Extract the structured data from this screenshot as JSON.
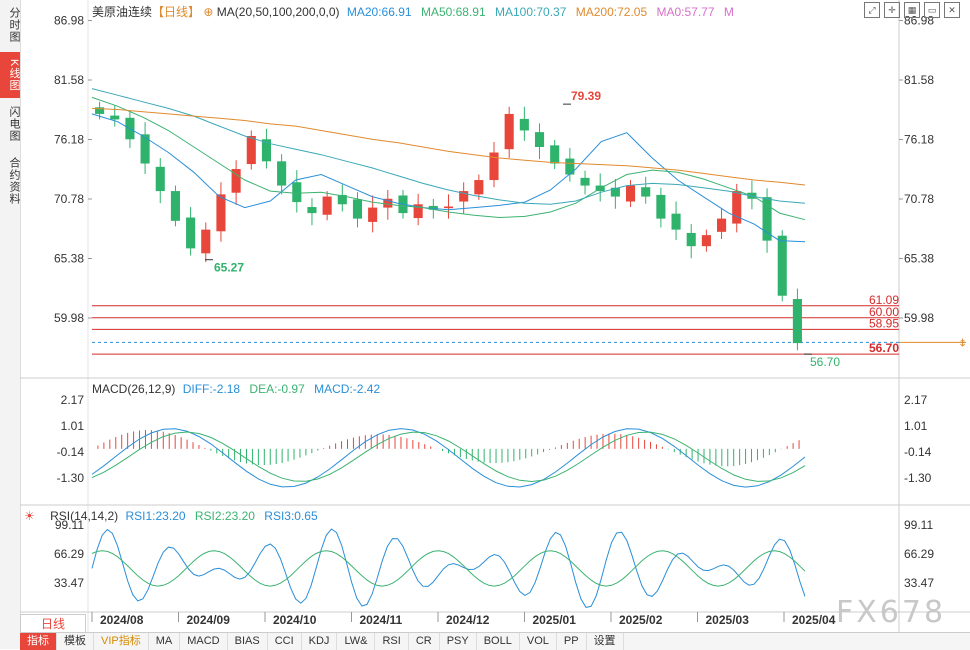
{
  "left_tabs": [
    {
      "label": "分时图",
      "active": false
    },
    {
      "label": "K线图",
      "active": true
    },
    {
      "label": "闪电图",
      "active": false
    },
    {
      "label": "合约资料",
      "active": false
    }
  ],
  "header": {
    "instrument": "美原油连续",
    "period_tag": "【日线】",
    "ma_label": "MA(20,50,100,200,0,0)",
    "ma20": "MA20:66.91",
    "ma50": "MA50:68.91",
    "ma100": "MA100:70.37",
    "ma200": "MA200:72.05",
    "ma0": "MA0:57.77",
    "m": "M"
  },
  "toolbar": {
    "icons": [
      "fullscreen-icon",
      "crosshair-icon",
      "grid-icon",
      "window-icon",
      "close-icon"
    ]
  },
  "colors": {
    "up": "#e8463b",
    "down": "#2fb36c",
    "ma20": "#2a8fd8",
    "ma50": "#3cb371",
    "ma100": "#3aa8b8",
    "ma200": "#e08a2e",
    "hline": "#d42a2a",
    "dash": "#2a8fd8"
  },
  "price_axis": [
    "86.98",
    "81.58",
    "76.18",
    "70.78",
    "65.38",
    "59.98"
  ],
  "annotations": {
    "high": "79.39",
    "low": "65.27",
    "last_low": "56.70"
  },
  "levels": [
    "61.09",
    "60.00",
    "58.95",
    "56.70"
  ],
  "macd": {
    "label": "MACD(26,12,9)",
    "diff": "DIFF:-2.18",
    "dea": "DEA:-0.97",
    "macd": "MACD:-2.42",
    "axis": [
      "2.17",
      "1.01",
      "-0.14",
      "-1.30"
    ]
  },
  "rsi": {
    "label": "RSI(14,14,2)",
    "rsi1": "RSI1:23.20",
    "rsi2": "RSI2:23.20",
    "rsi3": "RSI3:0.65",
    "axis": [
      "99.11",
      "66.29",
      "33.47"
    ]
  },
  "x_axis": [
    "2024/08",
    "2024/09",
    "2024/10",
    "2024/11",
    "2024/12",
    "2025/01",
    "2025/02",
    "2025/03",
    "2025/04"
  ],
  "period_tab": "日线",
  "bottom_tabs": [
    "指标",
    "模板",
    "VIP指标",
    "MA",
    "MACD",
    "BIAS",
    "CCI",
    "KDJ",
    "LW&",
    "RSI",
    "CR",
    "PSY",
    "BOLL",
    "VOL",
    "PP",
    "设置"
  ],
  "watermark": "FX678",
  "chart_data": {
    "type": "candlestick",
    "title": "美原油连续【日线】",
    "price_ylim": [
      56.0,
      88.0
    ],
    "ma_series": [
      {
        "name": "MA20",
        "values": [
          78.5,
          77.8,
          76.5,
          75.0,
          73.2,
          71.0,
          70.0,
          70.6,
          72.5,
          73.0,
          72.0,
          71.0,
          70.4,
          70.0,
          69.8,
          70.0,
          70.2,
          70.5,
          71.6,
          73.5,
          76.0,
          76.8,
          74.5,
          72.5,
          71.0,
          69.5,
          68.5,
          67.0,
          66.9
        ]
      },
      {
        "name": "MA50",
        "values": [
          80.0,
          79.2,
          78.2,
          77.0,
          75.5,
          74.0,
          72.5,
          71.5,
          71.3,
          71.4,
          71.0,
          70.5,
          70.2,
          70.0,
          69.6,
          69.3,
          69.1,
          69.2,
          69.6,
          70.4,
          71.8,
          73.0,
          73.4,
          73.2,
          72.6,
          71.8,
          71.0,
          69.5,
          68.9
        ]
      },
      {
        "name": "MA100",
        "values": [
          80.8,
          80.2,
          79.6,
          79.0,
          78.3,
          77.4,
          76.5,
          75.8,
          75.3,
          74.8,
          74.2,
          73.6,
          72.9,
          72.2,
          71.6,
          71.1,
          70.7,
          70.4,
          70.3,
          70.6,
          71.4,
          72.0,
          72.2,
          72.1,
          71.8,
          71.5,
          71.0,
          70.6,
          70.4
        ]
      },
      {
        "name": "MA200",
        "values": [
          79.0,
          78.9,
          78.7,
          78.5,
          78.3,
          78.1,
          77.9,
          77.6,
          77.4,
          77.0,
          76.6,
          76.2,
          75.9,
          75.5,
          75.1,
          74.8,
          74.5,
          74.3,
          74.1,
          74.0,
          73.9,
          73.8,
          73.6,
          73.4,
          73.1,
          72.8,
          72.5,
          72.3,
          72.05
        ]
      }
    ],
    "close_series": [
      78.5,
      78.0,
      76.2,
      74.0,
      71.5,
      68.8,
      66.3,
      68.0,
      71.2,
      73.5,
      76.5,
      74.2,
      72.0,
      70.5,
      69.5,
      71.0,
      70.3,
      69.0,
      70.0,
      70.8,
      69.5,
      70.3,
      69.8,
      70.1,
      71.5,
      72.5,
      75.0,
      78.5,
      77.0,
      75.5,
      74.0,
      73.0,
      72.0,
      71.5,
      71.0,
      72.0,
      71.0,
      69.0,
      68.0,
      66.5,
      67.5,
      69.0,
      71.5,
      70.8,
      67.0,
      62.0,
      57.7
    ],
    "macd_series": [
      {
        "name": "DIFF",
        "last": -2.18
      },
      {
        "name": "DEA",
        "last": -0.97
      },
      {
        "name": "MACD",
        "last": -2.42
      }
    ],
    "macd_ylim": [
      -2.5,
      2.6
    ],
    "rsi_series": [
      {
        "name": "RSI1",
        "last": 23.2
      },
      {
        "name": "RSI2",
        "last": 23.2
      },
      {
        "name": "RSI3",
        "last": 0.65
      }
    ],
    "rsi_ylim": [
      0,
      100
    ]
  }
}
